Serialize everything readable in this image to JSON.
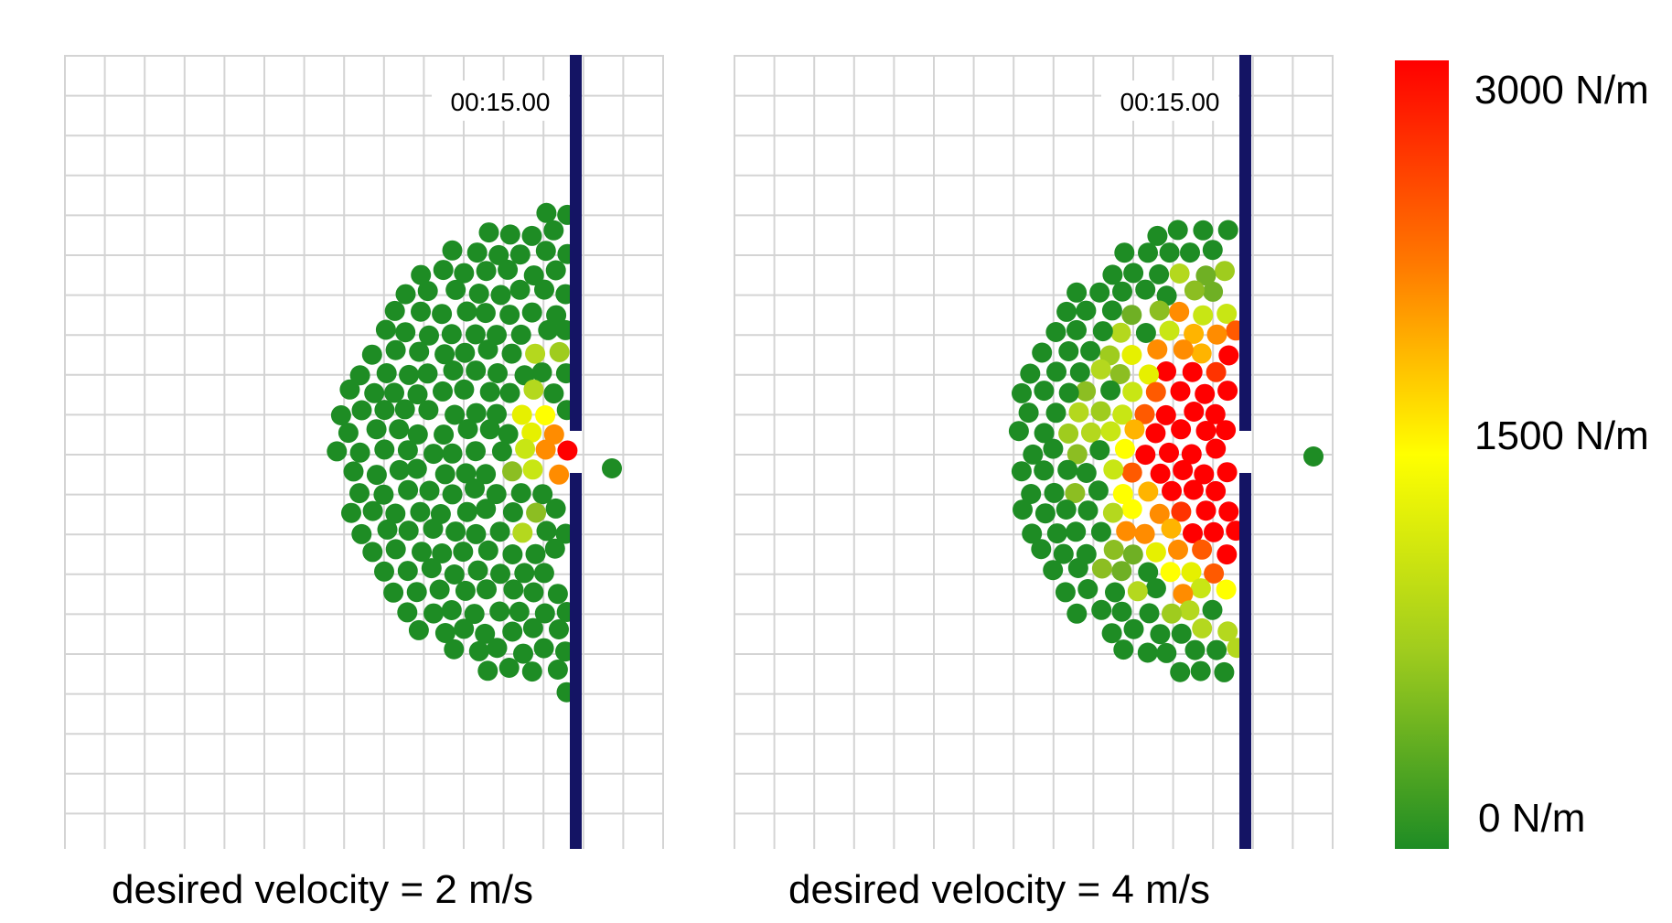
{
  "panels": [
    {
      "timestamp": "00:15.00",
      "caption": "desired velocity = 2 m/s",
      "crowd_radius_m": 6.0,
      "hot_agents": [
        {
          "color": "#ff0000"
        },
        {
          "color": "#ff8c00"
        },
        {
          "color": "#ffff00"
        },
        {
          "color": "#ffff00"
        },
        {
          "color": "#ffff00"
        },
        {
          "color": "#e6f000"
        },
        {
          "color": "#c8e614"
        },
        {
          "color": "#b4d81e"
        },
        {
          "color": "#b4d81e"
        },
        {
          "color": "#9fcc1e"
        },
        {
          "color": "#9fcc1e"
        },
        {
          "color": "#8cbe22"
        }
      ]
    },
    {
      "timestamp": "00:15.00",
      "caption": "desired velocity = 4 m/s",
      "crowd_radius_m": 6.1,
      "hot_agents": "dense red core"
    }
  ],
  "colorbar": {
    "max_label": "3000 N/m",
    "mid_label": "1500 N/m",
    "min_label": "0 N/m",
    "colors": [
      "#ff0000",
      "#ff7a00",
      "#ffff00",
      "#9fcc1e",
      "#1e8c24"
    ]
  },
  "colors": {
    "grid": "#d4d4d4",
    "wall": "#141464",
    "agent_base": "#1e8c24"
  }
}
